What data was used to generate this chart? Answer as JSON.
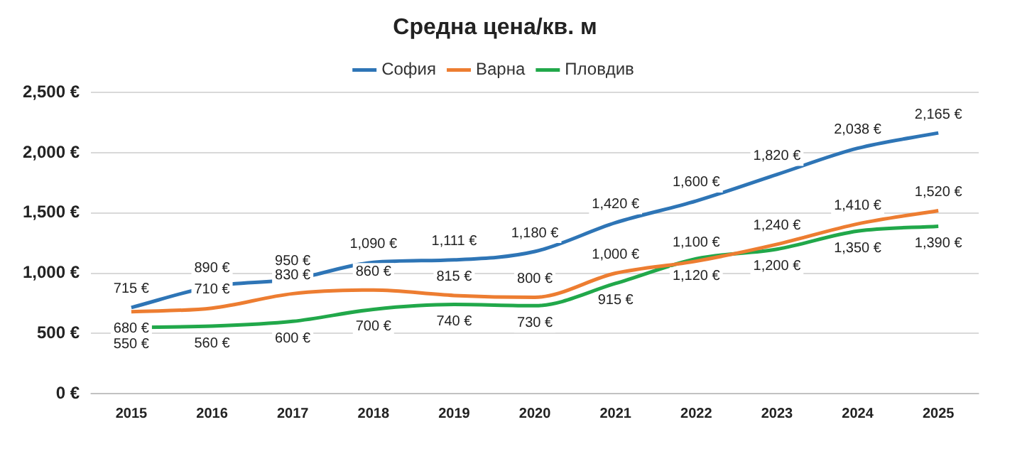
{
  "chart_data": {
    "type": "line",
    "title": "Средна цена/кв. м",
    "categories": [
      "2015",
      "2016",
      "2017",
      "2018",
      "2019",
      "2020",
      "2021",
      "2022",
      "2023",
      "2024",
      "2025"
    ],
    "series": [
      {
        "name": "София",
        "color": "#2e75b6",
        "values": [
          715,
          890,
          950,
          1090,
          1111,
          1180,
          1420,
          1600,
          1820,
          2038,
          2165
        ],
        "value_labels": [
          "715 €",
          "890 €",
          "950 €",
          "1,090 €",
          "1,111 €",
          "1,180 €",
          "1,420 €",
          "1,600 €",
          "1,820 €",
          "2,038 €",
          "2,165 €"
        ]
      },
      {
        "name": "Варна",
        "color": "#ed7d31",
        "values": [
          680,
          710,
          830,
          860,
          815,
          800,
          1000,
          1100,
          1240,
          1410,
          1520
        ],
        "value_labels": [
          "680 €",
          "710 €",
          "830 €",
          "860 €",
          "815 €",
          "800 €",
          "1,000 €",
          "1,100 €",
          "1,240 €",
          "1,410 €",
          "1,520 €"
        ]
      },
      {
        "name": "Пловдив",
        "color": "#21a84a",
        "values": [
          550,
          560,
          600,
          700,
          740,
          730,
          915,
          1120,
          1200,
          1350,
          1390
        ],
        "value_labels": [
          "550 €",
          "560 €",
          "600 €",
          "700 €",
          "740 €",
          "730 €",
          "915 €",
          "1,120 €",
          "1,200 €",
          "1,350 €",
          "1,390 €"
        ]
      }
    ],
    "ylim": [
      0,
      2500
    ],
    "yticks": [
      {
        "value": 0,
        "label": "0 €"
      },
      {
        "value": 500,
        "label": "500 €"
      },
      {
        "value": 1000,
        "label": "1,000 €"
      },
      {
        "value": 1500,
        "label": "1,500 €"
      },
      {
        "value": 2000,
        "label": "2,000 €"
      },
      {
        "value": 2500,
        "label": "2,500 €"
      }
    ],
    "grid": "y",
    "legend": "top",
    "marker": "none",
    "line_style": "solid"
  }
}
